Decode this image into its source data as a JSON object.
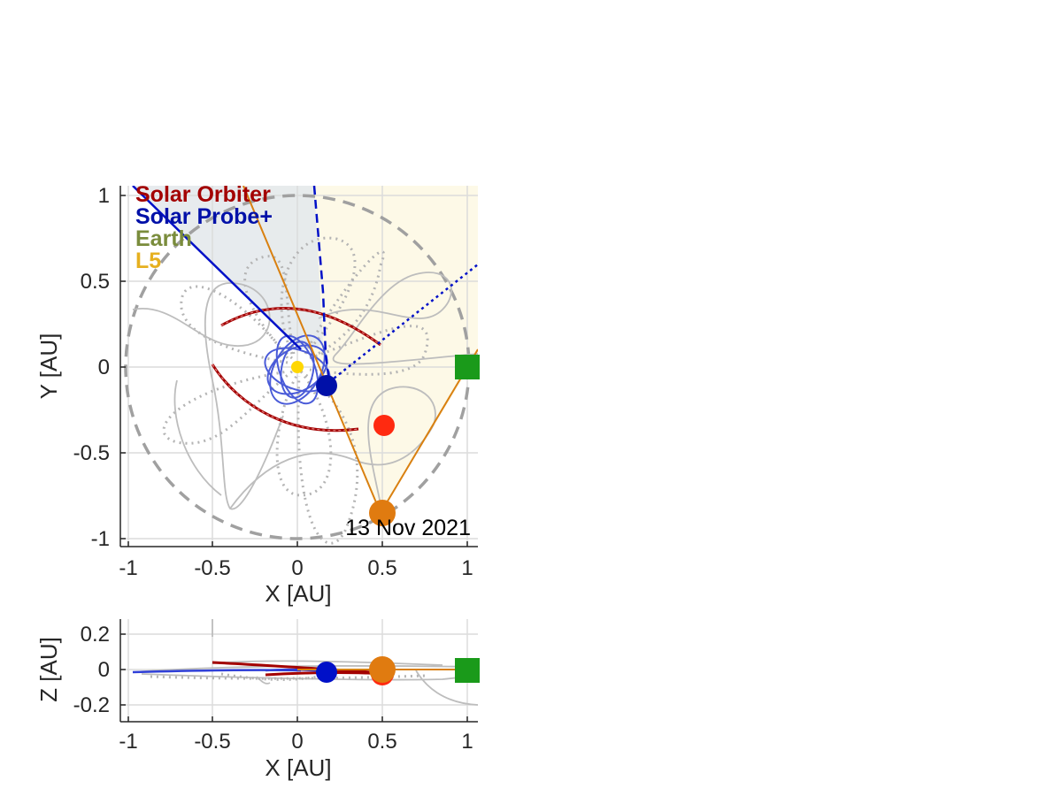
{
  "chart_data": [
    {
      "type": "scatter",
      "xlabel": "X [AU]",
      "ylabel": "Y [AU]",
      "xlim": [
        -1.05,
        1.05
      ],
      "ylim": [
        -1.05,
        1.05
      ],
      "xticks": [
        "-1",
        "-0.5",
        "0",
        "0.5",
        "1"
      ],
      "yticks": [
        "1",
        "0.5",
        "0",
        "-0.5",
        "-1"
      ],
      "grid": true,
      "legend_position": "top-left",
      "date": "13 Nov 2021",
      "legend": [
        {
          "name": "Solar Orbiter",
          "color": "#a30000"
        },
        {
          "name": "Solar Probe+",
          "color": "#0010a8"
        },
        {
          "name": "Earth",
          "color": "#7a8c3c"
        },
        {
          "name": "L5",
          "color": "#e6b020"
        }
      ],
      "bodies": [
        {
          "name": "Sun",
          "x": 0.0,
          "y": 0.0,
          "color": "#ffd700"
        },
        {
          "name": "Solar Probe+",
          "x": 0.17,
          "y": -0.11,
          "color": "#0010a8"
        },
        {
          "name": "Solar Orbiter",
          "x": 0.5,
          "y": -0.34,
          "color": "#ff2a10"
        },
        {
          "name": "L5",
          "x": 0.5,
          "y": -0.86,
          "color": "#e07b10"
        },
        {
          "name": "Earth",
          "x": 1.0,
          "y": 0.0,
          "color": "#1a9a1a",
          "marker": "square"
        }
      ]
    },
    {
      "type": "scatter",
      "xlabel": "X [AU]",
      "ylabel": "Z [AU]",
      "xlim": [
        -1.05,
        1.05
      ],
      "ylim": [
        -0.3,
        0.3
      ],
      "xticks": [
        "-1",
        "-0.5",
        "0",
        "0.5",
        "1"
      ],
      "yticks": [
        "0.2",
        "0",
        "-0.2"
      ],
      "grid": true,
      "bodies": [
        {
          "name": "Solar Probe+",
          "x": 0.17,
          "z": 0.0,
          "color": "#0010a8"
        },
        {
          "name": "Solar Orbiter",
          "x": 0.5,
          "z": -0.01,
          "color": "#ff2a10"
        },
        {
          "name": "L5",
          "x": 0.5,
          "z": 0.0,
          "color": "#e07b10"
        },
        {
          "name": "Earth",
          "x": 1.0,
          "z": 0.0,
          "color": "#1a9a1a",
          "marker": "square"
        }
      ]
    }
  ]
}
